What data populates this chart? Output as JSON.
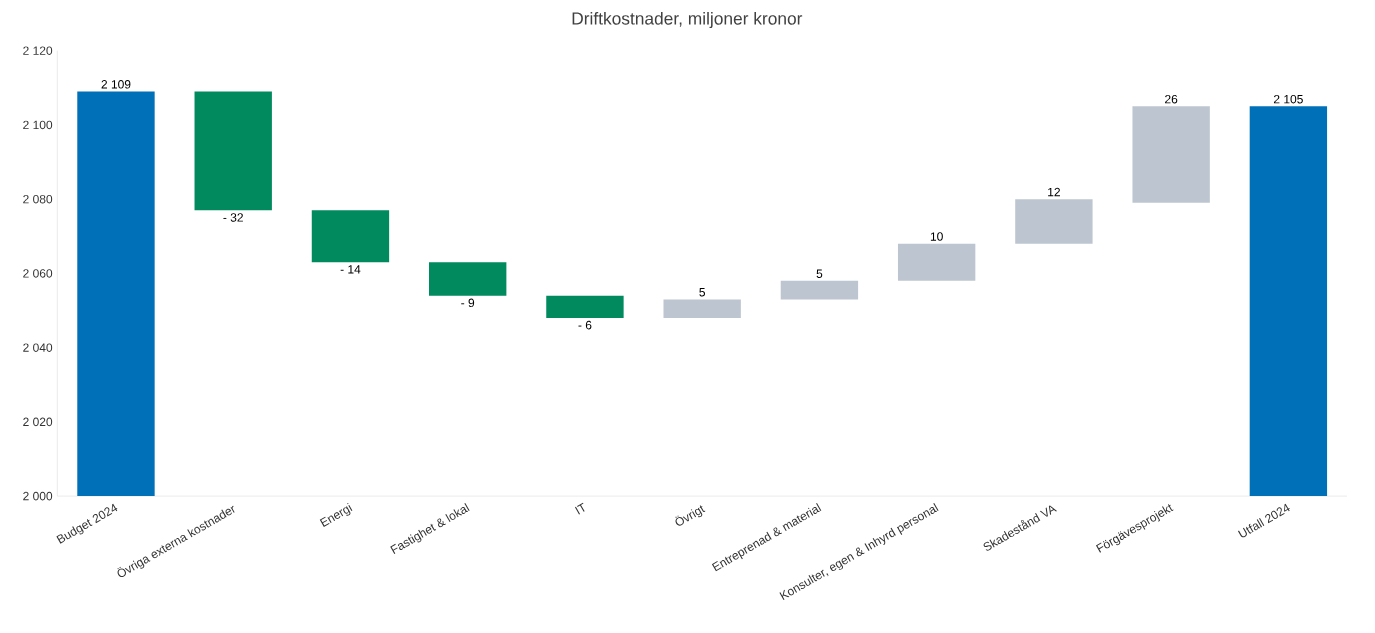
{
  "chart_data": {
    "type": "bar",
    "title": "Driftkostnader, miljoner kronor",
    "categories": [
      "Budget 2024",
      "Övriga externa kostnader",
      "Energi",
      "Fastighet & lokal",
      "IT",
      "Övrigt",
      "Entreprenad & material",
      "Konsulter, egen & Inhyrd personal",
      "Skadestånd VA",
      "Förgävesprojekt",
      "Utfall 2024"
    ],
    "values": [
      109,
      -32,
      -14,
      -9,
      -6,
      5,
      5,
      10,
      12,
      26,
      105
    ],
    "base": [
      2000,
      2109,
      2077,
      2063,
      2054,
      2048,
      2053,
      2058,
      2068,
      2079,
      2000
    ],
    "colors": [
      "#0070b8",
      "#008a5e",
      "#008a5e",
      "#008a5e",
      "#008a5e",
      "#bdc6d0",
      "#bdc6d0",
      "#bdc6d0",
      "#bdc6d0",
      "#bdc6d0",
      "#0070b8"
    ],
    "value_labels": [
      "2 109",
      "- 32",
      "- 14",
      "- 9",
      "- 6",
      "5",
      "5",
      "10",
      "12",
      "26",
      "2 105"
    ],
    "ylim": [
      2000,
      2120
    ],
    "yticks": [
      {
        "value": 2000,
        "label": "2 000"
      },
      {
        "value": 2020,
        "label": "2 020"
      },
      {
        "value": 2040,
        "label": "2 040"
      },
      {
        "value": 2060,
        "label": "2 060"
      },
      {
        "value": 2080,
        "label": "2 080"
      },
      {
        "value": 2100,
        "label": "2 100"
      },
      {
        "value": 2120,
        "label": "2 120"
      }
    ]
  }
}
